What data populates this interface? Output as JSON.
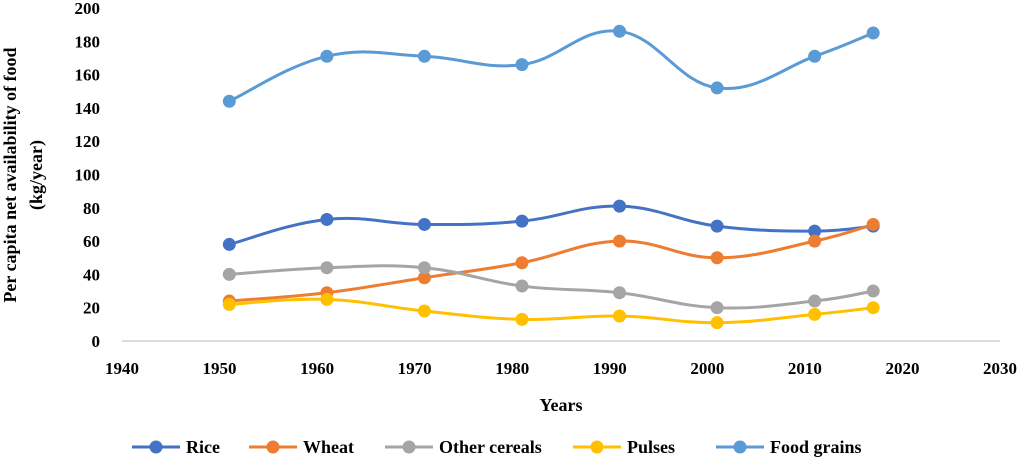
{
  "chart_data": {
    "type": "line",
    "title": "",
    "xlabel": "Years",
    "ylabel_line1": "Per capita net availability of food",
    "ylabel_line2": "(kg/year)",
    "xlim": [
      1940,
      2030
    ],
    "ylim": [
      0,
      200
    ],
    "x_ticks": [
      "1940",
      "1950",
      "1960",
      "1970",
      "1980",
      "1990",
      "2000",
      "2010",
      "2020",
      "2030"
    ],
    "y_ticks": [
      "0",
      "20",
      "40",
      "60",
      "80",
      "100",
      "120",
      "140",
      "160",
      "180",
      "200"
    ],
    "grid": false,
    "legend_position": "bottom",
    "x": [
      1951,
      1961,
      1971,
      1981,
      1991,
      2001,
      2011,
      2017
    ],
    "series": [
      {
        "name": "Rice",
        "color": "#4472C4",
        "values": [
          58,
          73,
          70,
          72,
          81,
          69,
          66,
          69
        ]
      },
      {
        "name": "Wheat",
        "color": "#ED7D31",
        "values": [
          24,
          29,
          38,
          47,
          60,
          50,
          60,
          70
        ]
      },
      {
        "name": "Other cereals",
        "color": "#A5A5A5",
        "values": [
          40,
          44,
          44,
          33,
          29,
          20,
          24,
          30
        ]
      },
      {
        "name": "Pulses",
        "color": "#FFC000",
        "values": [
          22,
          25,
          18,
          13,
          15,
          11,
          16,
          20
        ]
      },
      {
        "name": "Food grains",
        "color": "#5B9BD5",
        "values": [
          144,
          171,
          171,
          166,
          186,
          152,
          171,
          185
        ]
      }
    ]
  }
}
